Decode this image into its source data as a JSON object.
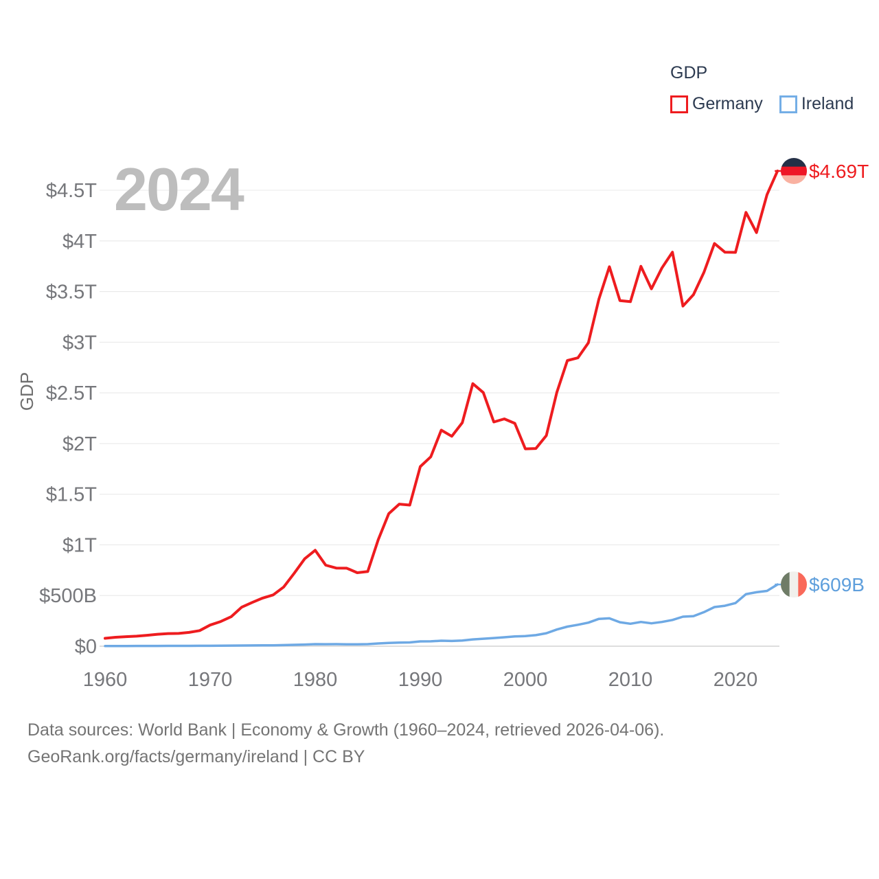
{
  "watermark_year": "2024",
  "legend": {
    "title": "GDP",
    "items": [
      {
        "label": "Germany",
        "color": "#ee1c1f"
      },
      {
        "label": "Ireland",
        "color": "#74aee6"
      }
    ]
  },
  "axes": {
    "y_title": "GDP",
    "y_ticks": [
      {
        "label": "$0",
        "value_billions": 0
      },
      {
        "label": "$500B",
        "value_billions": 500
      },
      {
        "label": "$1T",
        "value_billions": 1000
      },
      {
        "label": "$1.5T",
        "value_billions": 1500
      },
      {
        "label": "$2T",
        "value_billions": 2000
      },
      {
        "label": "$2.5T",
        "value_billions": 2500
      },
      {
        "label": "$3T",
        "value_billions": 3000
      },
      {
        "label": "$3.5T",
        "value_billions": 3500
      },
      {
        "label": "$4T",
        "value_billions": 4000
      },
      {
        "label": "$4.5T",
        "value_billions": 4500
      }
    ],
    "x_ticks": [
      1960,
      1970,
      1980,
      1990,
      2000,
      2010,
      2020
    ]
  },
  "end_labels": [
    {
      "series": "Germany",
      "value_label": "$4.69T",
      "text_color": "#ee1c1f",
      "flag_name": "germany-flag-icon",
      "flag_orientation": "horizontal",
      "flag_colors": [
        "#253047",
        "#ee1726",
        "#f9b1a1"
      ]
    },
    {
      "series": "Ireland",
      "value_label": "$609B",
      "text_color": "#5f9fdc",
      "flag_name": "ireland-flag-icon",
      "flag_orientation": "vertical",
      "flag_colors": [
        "#6f7c67",
        "#f1f0ec",
        "#f9695a"
      ]
    }
  ],
  "footer": {
    "line1": "Data sources: World Bank | Economy & Growth (1960–2024, retrieved 2026-04-06).",
    "line2": "GeoRank.org/facts/germany/ireland | CC BY"
  },
  "chart_data": {
    "type": "line",
    "title": "GDP",
    "units": "current USD, billions",
    "xlabel": "",
    "ylabel": "GDP",
    "xlim": [
      1960,
      2024
    ],
    "ylim_billions": [
      0,
      4750
    ],
    "grid": true,
    "legend_position": "top-right",
    "x": [
      1960,
      1961,
      1962,
      1963,
      1964,
      1965,
      1966,
      1967,
      1968,
      1969,
      1970,
      1971,
      1972,
      1973,
      1974,
      1975,
      1976,
      1977,
      1978,
      1979,
      1980,
      1981,
      1982,
      1983,
      1984,
      1985,
      1986,
      1987,
      1988,
      1989,
      1990,
      1991,
      1992,
      1993,
      1994,
      1995,
      1996,
      1997,
      1998,
      1999,
      2000,
      2001,
      2002,
      2003,
      2004,
      2005,
      2006,
      2007,
      2008,
      2009,
      2010,
      2011,
      2012,
      2013,
      2014,
      2015,
      2016,
      2017,
      2018,
      2019,
      2020,
      2021,
      2022,
      2023,
      2024
    ],
    "series": [
      {
        "name": "Germany",
        "color": "#ee1c1f",
        "values_billions": [
          78,
          88,
          94,
          99,
          108,
          118,
          125,
          126,
          136,
          154,
          209,
          243,
          291,
          385,
          432,
          475,
          506,
          584,
          720,
          863,
          947,
          800,
          771,
          770,
          725,
          737,
          1051,
          1308,
          1402,
          1393,
          1772,
          1869,
          2132,
          2072,
          2206,
          2591,
          2503,
          2213,
          2243,
          2199,
          1948,
          1951,
          2079,
          2506,
          2819,
          2846,
          2994,
          3425,
          3745,
          3411,
          3400,
          3749,
          3527,
          3733,
          3889,
          3357,
          3469,
          3690,
          3974,
          3888,
          3887,
          4281,
          4082,
          4456,
          4690
        ],
        "end_value_billions": 4690
      },
      {
        "name": "Ireland",
        "color": "#6ea9e4",
        "values_billions": [
          1.9,
          2.1,
          2.3,
          2.4,
          2.8,
          3.0,
          3.1,
          3.3,
          3.4,
          3.9,
          4.4,
          5.0,
          6.0,
          7.0,
          7.4,
          9.0,
          9.1,
          10.9,
          13.3,
          16.1,
          20.1,
          19.6,
          20.0,
          19.2,
          18.7,
          20.0,
          27.0,
          32.4,
          36.2,
          37.0,
          47.6,
          48.3,
          54.3,
          51.3,
          55.8,
          67.0,
          74.0,
          80.4,
          88.4,
          96.7,
          99.9,
          109.1,
          127.9,
          164.4,
          193.1,
          211.7,
          232.2,
          269.9,
          275.2,
          236.4,
          221.7,
          239.0,
          225.6,
          239.4,
          258.6,
          291.5,
          296.9,
          336.0,
          386.2,
          399.1,
          425.9,
          513.4,
          532.4,
          545.6,
          609
        ],
        "end_value_billions": 609
      }
    ]
  }
}
